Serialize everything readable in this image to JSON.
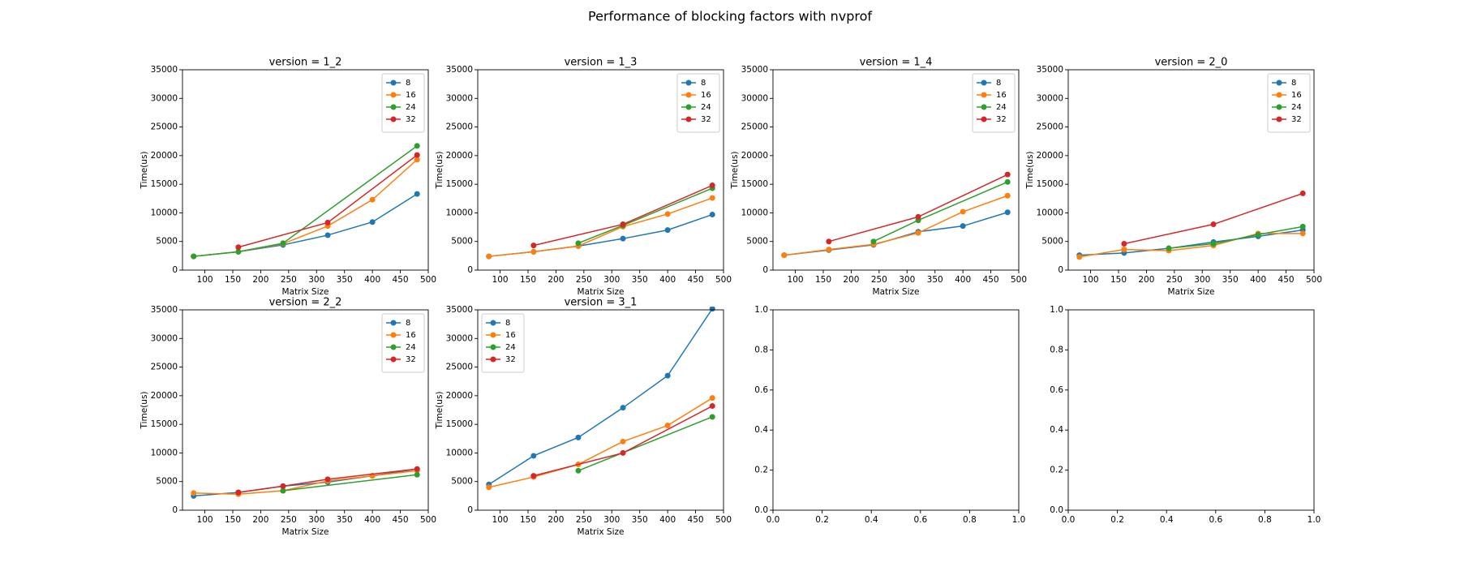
{
  "title": "Performance of blocking factors with nvprof",
  "chart_data": [
    {
      "type": "line",
      "title": "version = 1_2",
      "xlabel": "Matrix Size",
      "ylabel": "Time(us)",
      "legend": "upper right",
      "xlim": [
        60,
        500
      ],
      "ylim": [
        0,
        35000
      ],
      "xticks": [
        100,
        150,
        200,
        250,
        300,
        350,
        400,
        450,
        500
      ],
      "yticks": [
        0,
        5000,
        10000,
        15000,
        20000,
        25000,
        30000,
        35000
      ],
      "series": [
        {
          "name": "8",
          "color": "#1f77b4",
          "x": [
            80,
            160,
            240,
            320,
            400,
            480
          ],
          "values": [
            2400,
            3200,
            4400,
            6100,
            8400,
            13300
          ]
        },
        {
          "name": "16",
          "color": "#ff7f0e",
          "x": [
            80,
            160,
            240,
            320,
            400,
            480
          ],
          "values": [
            2400,
            3200,
            4600,
            7700,
            12300,
            19300
          ]
        },
        {
          "name": "24",
          "color": "#2ca02c",
          "x": [
            80,
            160,
            240,
            480
          ],
          "values": [
            2400,
            3200,
            4700,
            21700
          ]
        },
        {
          "name": "32",
          "color": "#d62728",
          "x": [
            160,
            320,
            480
          ],
          "values": [
            4000,
            8300,
            20100
          ]
        }
      ]
    },
    {
      "type": "line",
      "title": "version = 1_3",
      "xlabel": "Matrix Size",
      "ylabel": "Time(us)",
      "legend": "upper right",
      "xlim": [
        60,
        500
      ],
      "ylim": [
        0,
        35000
      ],
      "xticks": [
        100,
        150,
        200,
        250,
        300,
        350,
        400,
        450,
        500
      ],
      "yticks": [
        0,
        5000,
        10000,
        15000,
        20000,
        25000,
        30000,
        35000
      ],
      "series": [
        {
          "name": "8",
          "color": "#1f77b4",
          "x": [
            80,
            160,
            240,
            320,
            400,
            480
          ],
          "values": [
            2400,
            3200,
            4200,
            5500,
            7000,
            9700
          ]
        },
        {
          "name": "16",
          "color": "#ff7f0e",
          "x": [
            80,
            160,
            240,
            320,
            400,
            480
          ],
          "values": [
            2400,
            3200,
            4200,
            7600,
            9800,
            12600
          ]
        },
        {
          "name": "24",
          "color": "#2ca02c",
          "x": [
            240,
            320,
            480
          ],
          "values": [
            4700,
            7800,
            14300
          ]
        },
        {
          "name": "32",
          "color": "#d62728",
          "x": [
            160,
            320,
            480
          ],
          "values": [
            4300,
            8000,
            14800
          ]
        }
      ]
    },
    {
      "type": "line",
      "title": "version = 1_4",
      "xlabel": "Matrix Size",
      "ylabel": "Time(us)",
      "legend": "upper right",
      "xlim": [
        60,
        500
      ],
      "ylim": [
        0,
        35000
      ],
      "xticks": [
        100,
        150,
        200,
        250,
        300,
        350,
        400,
        450,
        500
      ],
      "yticks": [
        0,
        5000,
        10000,
        15000,
        20000,
        25000,
        30000,
        35000
      ],
      "series": [
        {
          "name": "8",
          "color": "#1f77b4",
          "x": [
            80,
            160,
            240,
            320,
            400,
            480
          ],
          "values": [
            2600,
            3500,
            4400,
            6700,
            7700,
            10100
          ]
        },
        {
          "name": "16",
          "color": "#ff7f0e",
          "x": [
            80,
            160,
            240,
            320,
            400,
            480
          ],
          "values": [
            2600,
            3600,
            4500,
            6500,
            10200,
            13000
          ]
        },
        {
          "name": "24",
          "color": "#2ca02c",
          "x": [
            240,
            320,
            480
          ],
          "values": [
            5000,
            8700,
            15400
          ]
        },
        {
          "name": "32",
          "color": "#d62728",
          "x": [
            160,
            320,
            480
          ],
          "values": [
            5000,
            9300,
            16700
          ]
        }
      ]
    },
    {
      "type": "line",
      "title": "version = 2_0",
      "xlabel": "Matrix Size",
      "ylabel": "Time(us)",
      "legend": "upper right",
      "xlim": [
        60,
        500
      ],
      "ylim": [
        0,
        35000
      ],
      "xticks": [
        100,
        150,
        200,
        250,
        300,
        350,
        400,
        450,
        500
      ],
      "yticks": [
        0,
        5000,
        10000,
        15000,
        20000,
        25000,
        30000,
        35000
      ],
      "series": [
        {
          "name": "8",
          "color": "#1f77b4",
          "x": [
            80,
            160,
            240,
            320,
            400,
            480
          ],
          "values": [
            2600,
            3000,
            3800,
            4900,
            5900,
            7000
          ]
        },
        {
          "name": "16",
          "color": "#ff7f0e",
          "x": [
            80,
            160,
            240,
            320,
            400,
            480
          ],
          "values": [
            2300,
            3600,
            3400,
            4300,
            6400,
            6400
          ]
        },
        {
          "name": "24",
          "color": "#2ca02c",
          "x": [
            240,
            320,
            400,
            480
          ],
          "values": [
            3800,
            4600,
            6200,
            7600
          ]
        },
        {
          "name": "32",
          "color": "#d62728",
          "x": [
            160,
            320,
            480
          ],
          "values": [
            4600,
            8000,
            13400
          ]
        }
      ]
    },
    {
      "type": "line",
      "title": "version = 2_2",
      "xlabel": "Matrix Size",
      "ylabel": "Time(us)",
      "legend": "upper right",
      "xlim": [
        60,
        500
      ],
      "ylim": [
        0,
        35000
      ],
      "xticks": [
        100,
        150,
        200,
        250,
        300,
        350,
        400,
        450,
        500
      ],
      "yticks": [
        0,
        5000,
        10000,
        15000,
        20000,
        25000,
        30000,
        35000
      ],
      "series": [
        {
          "name": "8",
          "color": "#1f77b4",
          "x": [
            80,
            160,
            240,
            320,
            400,
            480
          ],
          "values": [
            2500,
            3100,
            4200,
            4900,
            6000,
            7200
          ]
        },
        {
          "name": "16",
          "color": "#ff7f0e",
          "x": [
            80,
            160,
            240,
            320,
            400,
            480
          ],
          "values": [
            3000,
            2800,
            3400,
            5100,
            6000,
            6900
          ]
        },
        {
          "name": "24",
          "color": "#2ca02c",
          "x": [
            240,
            480
          ],
          "values": [
            3400,
            6200
          ]
        },
        {
          "name": "32",
          "color": "#d62728",
          "x": [
            160,
            240,
            320,
            480
          ],
          "values": [
            3100,
            4200,
            5400,
            7200
          ]
        }
      ]
    },
    {
      "type": "line",
      "title": "version = 3_1",
      "xlabel": "Matrix Size",
      "ylabel": "Time(us)",
      "legend": "upper left",
      "xlim": [
        60,
        500
      ],
      "ylim": [
        0,
        35000
      ],
      "xticks": [
        100,
        150,
        200,
        250,
        300,
        350,
        400,
        450,
        500
      ],
      "yticks": [
        0,
        5000,
        10000,
        15000,
        20000,
        25000,
        30000,
        35000
      ],
      "series": [
        {
          "name": "8",
          "color": "#1f77b4",
          "x": [
            80,
            160,
            240,
            320,
            400,
            480
          ],
          "values": [
            4500,
            9500,
            12700,
            17900,
            23500,
            35200
          ]
        },
        {
          "name": "16",
          "color": "#ff7f0e",
          "x": [
            80,
            160,
            240,
            320,
            400,
            480
          ],
          "values": [
            4000,
            5800,
            8000,
            12000,
            14800,
            19600
          ]
        },
        {
          "name": "24",
          "color": "#2ca02c",
          "x": [
            240,
            480
          ],
          "values": [
            6900,
            16300
          ]
        },
        {
          "name": "32",
          "color": "#d62728",
          "x": [
            160,
            320,
            480
          ],
          "values": [
            6000,
            10000,
            18200
          ]
        }
      ]
    },
    {
      "type": "empty",
      "xlim": [
        0,
        1
      ],
      "ylim": [
        0,
        1
      ],
      "xticks": [
        {
          "value": 0,
          "label": "0.0"
        },
        {
          "value": 0.2,
          "label": "0.2"
        },
        {
          "value": 0.4,
          "label": "0.4"
        },
        {
          "value": 0.6,
          "label": "0.6"
        },
        {
          "value": 0.8,
          "label": "0.8"
        },
        {
          "value": 1,
          "label": "1.0"
        }
      ],
      "yticks": [
        {
          "value": 0,
          "label": "0.0"
        },
        {
          "value": 0.2,
          "label": "0.2"
        },
        {
          "value": 0.4,
          "label": "0.4"
        },
        {
          "value": 0.6,
          "label": "0.6"
        },
        {
          "value": 0.8,
          "label": "0.8"
        },
        {
          "value": 1,
          "label": "1.0"
        }
      ]
    },
    {
      "type": "empty",
      "xlim": [
        0,
        1
      ],
      "ylim": [
        0,
        1
      ],
      "xticks": [
        {
          "value": 0,
          "label": "0.0"
        },
        {
          "value": 0.2,
          "label": "0.2"
        },
        {
          "value": 0.4,
          "label": "0.4"
        },
        {
          "value": 0.6,
          "label": "0.6"
        },
        {
          "value": 0.8,
          "label": "0.8"
        },
        {
          "value": 1,
          "label": "1.0"
        }
      ],
      "yticks": [
        {
          "value": 0,
          "label": "0.0"
        },
        {
          "value": 0.2,
          "label": "0.2"
        },
        {
          "value": 0.4,
          "label": "0.4"
        },
        {
          "value": 0.6,
          "label": "0.6"
        },
        {
          "value": 0.8,
          "label": "0.8"
        },
        {
          "value": 1,
          "label": "1.0"
        }
      ]
    }
  ]
}
